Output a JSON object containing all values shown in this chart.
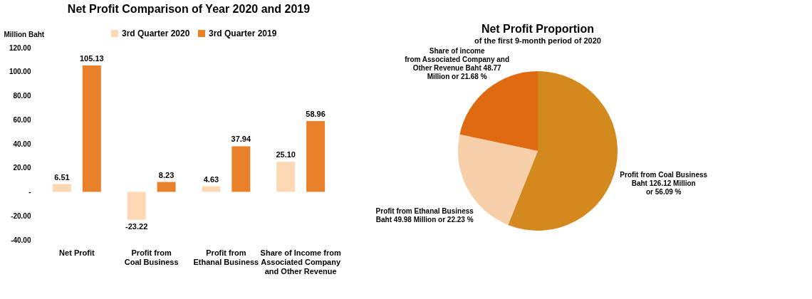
{
  "chart_data": [
    {
      "type": "bar",
      "title": "Net Profit Comparison of Year 2020 and 2019",
      "ylabel": "Million Baht",
      "categories": [
        "Net Profit",
        "Profit from\nCoal Business",
        "Profit from\nEthanal Business",
        "Share of Income from\nAssociated Company\nand Other Revenue"
      ],
      "series": [
        {
          "name": "3rd Quarter 2020",
          "color": "#fcd9b4",
          "values": [
            6.51,
            -23.22,
            4.63,
            25.1
          ],
          "value_labels": [
            "6.51",
            "-23.22",
            "4.63",
            "25.10"
          ]
        },
        {
          "name": "3rd Quarter 2019",
          "color": "#e8812a",
          "values": [
            105.13,
            8.23,
            37.94,
            58.96
          ],
          "value_labels": [
            "105.13",
            "8.23",
            "37.94",
            "58.96"
          ]
        }
      ],
      "ylim": [
        -40,
        120
      ],
      "yticks": [
        {
          "value": -40,
          "label": "-40.00"
        },
        {
          "value": -20,
          "label": "-20.00"
        },
        {
          "value": 0,
          "label": "-"
        },
        {
          "value": 20,
          "label": "20.00"
        },
        {
          "value": 40,
          "label": "40.00"
        },
        {
          "value": 60,
          "label": "60.00"
        },
        {
          "value": 80,
          "label": "80.00"
        },
        {
          "value": 100,
          "label": "100.00"
        },
        {
          "value": 120,
          "label": "120.00"
        }
      ],
      "legend": "top"
    },
    {
      "type": "pie",
      "title": "Net Profit Proportion",
      "subtitle": "of the first 9-month period of 2020",
      "categories": [
        "Profit from Coal Business\nBaht 126.12 Million\n or 56.09 %",
        "Profit from Ethanal Business\nBaht 49.98 Million or 22.23 %",
        "Share of income\nfrom Associated Company and\nOther Revenue Baht 48.77\nMillion or  21.68 %"
      ],
      "values": [
        126.12,
        49.98,
        48.77
      ],
      "colors": [
        "#d4891f",
        "#f7cfa8",
        "#e06a10"
      ]
    }
  ]
}
